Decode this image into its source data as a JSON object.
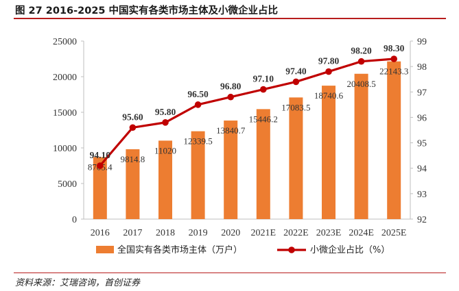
{
  "title": "图 27  2016-2025 中国实有各类市场主体及小微企业占比",
  "source": "资料来源：艾瑞咨询，首创证券",
  "colors": {
    "bar": "#ED7D31",
    "line": "#C00000",
    "rule": "#B71C1C",
    "axis": "#BFBFBF"
  },
  "chart_data": {
    "type": "bar",
    "categories": [
      "2016",
      "2017",
      "2018",
      "2019",
      "2020",
      "2021E",
      "2022E",
      "2023E",
      "2024E",
      "2025E"
    ],
    "series": [
      {
        "name": "全国实有各类市场主体（万户）",
        "type": "bar",
        "axis": "left",
        "values": [
          8705.4,
          9814.8,
          11020,
          12339.5,
          13840.7,
          15446.2,
          17083.5,
          18740.6,
          20408.5,
          22143.3
        ],
        "labels": [
          "8705.4",
          "9814.8",
          "11020",
          "12339.5",
          "13840.7",
          "15446.2",
          "17083.5",
          "18740.6",
          "20408.5",
          "22143.3"
        ]
      },
      {
        "name": "小微企业占比（%）",
        "type": "line",
        "axis": "right",
        "values": [
          94.1,
          95.6,
          95.8,
          96.5,
          96.8,
          97.1,
          97.4,
          97.8,
          98.2,
          98.3
        ],
        "labels": [
          "94.10",
          "95.60",
          "95.80",
          "96.50",
          "96.80",
          "97.10",
          "97.40",
          "97.80",
          "98.20",
          "98.30"
        ]
      }
    ],
    "y_left": {
      "min": 0,
      "max": 25000,
      "ticks": [
        "0",
        "5000",
        "10000",
        "15000",
        "20000",
        "25000"
      ]
    },
    "y_right": {
      "min": 92,
      "max": 99,
      "ticks": [
        "92",
        "93",
        "94",
        "95",
        "96",
        "97",
        "98",
        "99"
      ]
    },
    "legend_position": "bottom"
  }
}
